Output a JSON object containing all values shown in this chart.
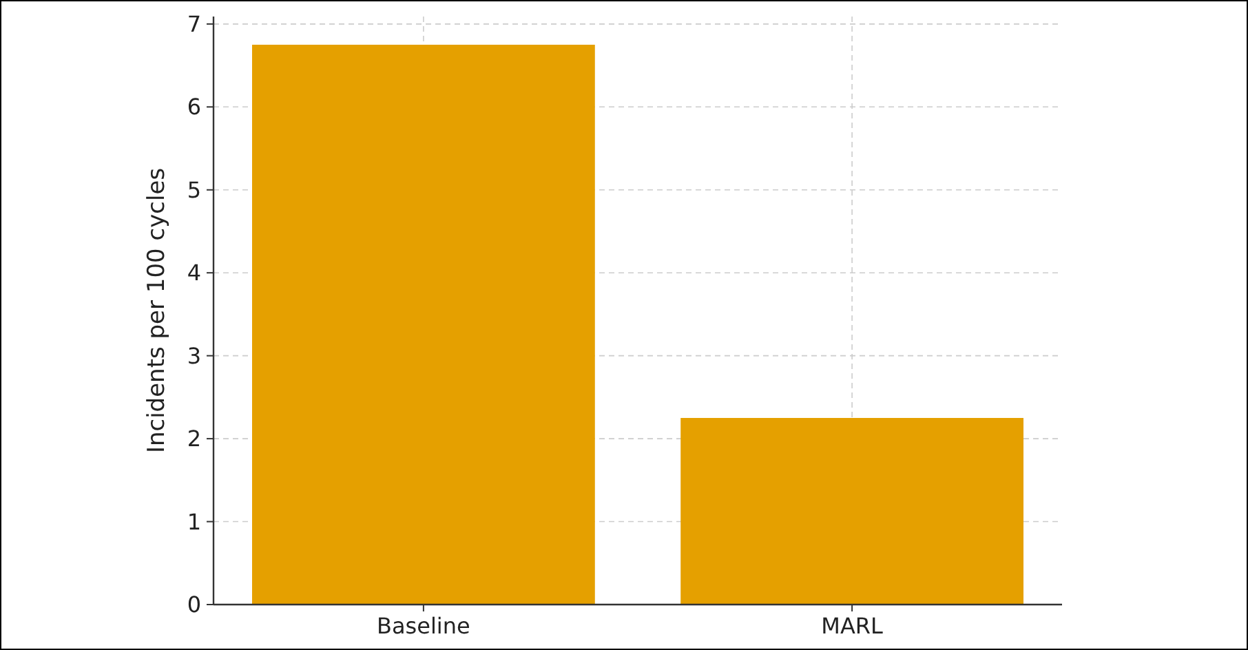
{
  "chart_data": {
    "type": "bar",
    "categories": [
      "Baseline",
      "MARL"
    ],
    "values": [
      6.75,
      2.25
    ],
    "color": "#e5a000",
    "ylabel": "Incidents per 100 cycles",
    "ylim": [
      0,
      7.09
    ],
    "yticks": [
      0,
      1,
      2,
      3,
      4,
      5,
      6,
      7
    ],
    "grid": true
  }
}
